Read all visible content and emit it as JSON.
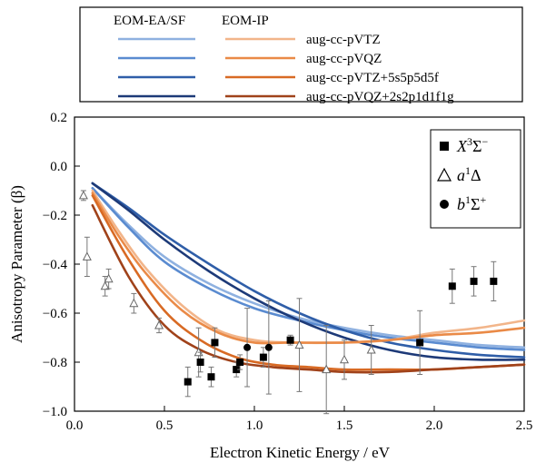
{
  "chart_data": {
    "type": "scatter",
    "xlabel": "Electron Kinetic Energy / eV",
    "ylabel": "Anisotropy Parameter (β)",
    "xlim": [
      0,
      2.5
    ],
    "ylim": [
      -1.0,
      0.2
    ],
    "x_ticks": [
      "0.0",
      "0.5",
      "1.0",
      "1.5",
      "2.0",
      "2.5"
    ],
    "y_ticks": [
      "0.2",
      "0.0",
      "-0.2",
      "-0.4",
      "-0.6",
      "-0.8",
      "-1.0"
    ],
    "grid": false,
    "legend_top": {
      "col1_header": "EOM-EA/SF",
      "col2_header": "EOM-IP",
      "rows": [
        "aug-cc-pVTZ",
        "aug-cc-pVQZ",
        "aug-cc-pVTZ+5s5p5d5f",
        "aug-cc-pVQZ+2s2p1d1f1g"
      ]
    },
    "legend_markers": [
      {
        "marker": "square",
        "label_main": "X",
        "label_sup": "3",
        "label_tail": "Σ",
        "label_tail_sup": "−"
      },
      {
        "marker": "triangle",
        "label_main": "a",
        "label_sup": "1",
        "label_tail": "Δ",
        "label_tail_sup": ""
      },
      {
        "marker": "circle",
        "label_main": "b",
        "label_sup": "1",
        "label_tail": "Σ",
        "label_tail_sup": "+"
      }
    ],
    "colors": {
      "ea_vtz": "#8fb1e0",
      "ea_vqz": "#5a8bd0",
      "ea_vtz_diff": "#2f5ea8",
      "ea_vqz_diff": "#1d3a78",
      "ip_vtz": "#f2b58a",
      "ip_vqz": "#ea8a47",
      "ip_vtz_diff": "#d86a24",
      "ip_vqz_diff": "#a0421a"
    },
    "series": [
      {
        "key": "ea_vtz",
        "points": [
          [
            0.1,
            -0.09
          ],
          [
            0.3,
            -0.24
          ],
          [
            0.5,
            -0.37
          ],
          [
            0.75,
            -0.48
          ],
          [
            1.0,
            -0.56
          ],
          [
            1.25,
            -0.62
          ],
          [
            1.5,
            -0.66
          ],
          [
            1.75,
            -0.69
          ],
          [
            2.0,
            -0.71
          ],
          [
            2.25,
            -0.73
          ],
          [
            2.5,
            -0.74
          ]
        ]
      },
      {
        "key": "ea_vqz",
        "points": [
          [
            0.1,
            -0.09
          ],
          [
            0.3,
            -0.25
          ],
          [
            0.5,
            -0.39
          ],
          [
            0.75,
            -0.5
          ],
          [
            1.0,
            -0.58
          ],
          [
            1.25,
            -0.63
          ],
          [
            1.5,
            -0.67
          ],
          [
            1.75,
            -0.7
          ],
          [
            2.0,
            -0.72
          ],
          [
            2.25,
            -0.74
          ],
          [
            2.5,
            -0.75
          ]
        ]
      },
      {
        "key": "ea_vtz_diff",
        "points": [
          [
            0.1,
            -0.07
          ],
          [
            0.3,
            -0.17
          ],
          [
            0.5,
            -0.28
          ],
          [
            0.75,
            -0.4
          ],
          [
            1.0,
            -0.51
          ],
          [
            1.25,
            -0.6
          ],
          [
            1.5,
            -0.67
          ],
          [
            1.75,
            -0.72
          ],
          [
            2.0,
            -0.75
          ],
          [
            2.25,
            -0.77
          ],
          [
            2.5,
            -0.78
          ]
        ]
      },
      {
        "key": "ea_vqz_diff",
        "points": [
          [
            0.1,
            -0.07
          ],
          [
            0.3,
            -0.18
          ],
          [
            0.5,
            -0.3
          ],
          [
            0.75,
            -0.43
          ],
          [
            1.0,
            -0.54
          ],
          [
            1.25,
            -0.63
          ],
          [
            1.5,
            -0.7
          ],
          [
            1.75,
            -0.75
          ],
          [
            2.0,
            -0.78
          ],
          [
            2.25,
            -0.79
          ],
          [
            2.5,
            -0.79
          ]
        ]
      },
      {
        "key": "ip_vtz",
        "points": [
          [
            0.1,
            -0.1
          ],
          [
            0.25,
            -0.27
          ],
          [
            0.4,
            -0.42
          ],
          [
            0.6,
            -0.57
          ],
          [
            0.8,
            -0.67
          ],
          [
            1.0,
            -0.71
          ],
          [
            1.2,
            -0.72
          ],
          [
            1.5,
            -0.72
          ],
          [
            1.75,
            -0.71
          ],
          [
            2.0,
            -0.68
          ],
          [
            2.25,
            -0.66
          ],
          [
            2.5,
            -0.63
          ]
        ]
      },
      {
        "key": "ip_vqz",
        "points": [
          [
            0.1,
            -0.11
          ],
          [
            0.25,
            -0.29
          ],
          [
            0.4,
            -0.44
          ],
          [
            0.6,
            -0.59
          ],
          [
            0.8,
            -0.68
          ],
          [
            1.0,
            -0.72
          ],
          [
            1.2,
            -0.72
          ],
          [
            1.5,
            -0.72
          ],
          [
            1.75,
            -0.71
          ],
          [
            2.0,
            -0.69
          ],
          [
            2.25,
            -0.68
          ],
          [
            2.5,
            -0.66
          ]
        ]
      },
      {
        "key": "ip_vtz_diff",
        "points": [
          [
            0.1,
            -0.12
          ],
          [
            0.3,
            -0.38
          ],
          [
            0.5,
            -0.59
          ],
          [
            0.7,
            -0.71
          ],
          [
            0.9,
            -0.78
          ],
          [
            1.1,
            -0.81
          ],
          [
            1.3,
            -0.82
          ],
          [
            1.5,
            -0.83
          ],
          [
            1.75,
            -0.83
          ],
          [
            2.0,
            -0.83
          ],
          [
            2.25,
            -0.82
          ],
          [
            2.5,
            -0.81
          ]
        ]
      },
      {
        "key": "ip_vqz_diff",
        "points": [
          [
            0.1,
            -0.16
          ],
          [
            0.3,
            -0.45
          ],
          [
            0.5,
            -0.65
          ],
          [
            0.7,
            -0.75
          ],
          [
            0.9,
            -0.8
          ],
          [
            1.1,
            -0.82
          ],
          [
            1.3,
            -0.83
          ],
          [
            1.5,
            -0.84
          ],
          [
            1.75,
            -0.84
          ],
          [
            2.0,
            -0.83
          ],
          [
            2.25,
            -0.82
          ],
          [
            2.5,
            -0.81
          ]
        ]
      }
    ],
    "data_points": {
      "X3Sigma": [
        {
          "x": 0.63,
          "y": -0.88,
          "err": 0.06
        },
        {
          "x": 0.7,
          "y": -0.8,
          "err": 0.04
        },
        {
          "x": 0.76,
          "y": -0.86,
          "err": 0.04
        },
        {
          "x": 0.78,
          "y": -0.72,
          "err": 0.06
        },
        {
          "x": 0.9,
          "y": -0.83,
          "err": 0.03
        },
        {
          "x": 0.92,
          "y": -0.8,
          "err": 0.03
        },
        {
          "x": 1.05,
          "y": -0.78,
          "err": 0.04
        },
        {
          "x": 1.2,
          "y": -0.71,
          "err": 0.02
        },
        {
          "x": 1.92,
          "y": -0.72,
          "err": 0.13
        },
        {
          "x": 2.1,
          "y": -0.49,
          "err": 0.07
        },
        {
          "x": 2.22,
          "y": -0.47,
          "err": 0.06
        },
        {
          "x": 2.33,
          "y": -0.47,
          "err": 0.08
        }
      ],
      "a1Delta": [
        {
          "x": 0.05,
          "y": -0.12,
          "err": 0.02
        },
        {
          "x": 0.07,
          "y": -0.37,
          "err": 0.08
        },
        {
          "x": 0.17,
          "y": -0.49,
          "err": 0.04
        },
        {
          "x": 0.19,
          "y": -0.46,
          "err": 0.04
        },
        {
          "x": 0.33,
          "y": -0.56,
          "err": 0.04
        },
        {
          "x": 0.47,
          "y": -0.65,
          "err": 0.03
        },
        {
          "x": 0.69,
          "y": -0.76,
          "err": 0.1
        },
        {
          "x": 1.25,
          "y": -0.73,
          "err": 0.19
        },
        {
          "x": 1.4,
          "y": -0.83,
          "err": 0.18
        },
        {
          "x": 1.5,
          "y": -0.79,
          "err": 0.08
        },
        {
          "x": 1.65,
          "y": -0.75,
          "err": 0.1
        }
      ],
      "b1Sigma": [
        {
          "x": 0.96,
          "y": -0.74,
          "err": 0.16
        },
        {
          "x": 1.08,
          "y": -0.74,
          "err": 0.19
        }
      ]
    }
  }
}
